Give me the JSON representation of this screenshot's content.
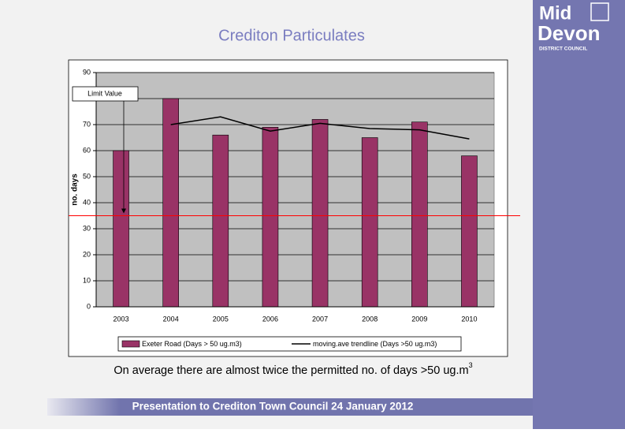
{
  "logo": {
    "line1": "Mid",
    "line2": "Devon",
    "line3": "DISTRICT COUNCIL"
  },
  "caption": {
    "text": "On average there are almost twice the permitted no. of days >50 ug.m",
    "superscript": "3"
  },
  "footer": "Presentation to Crediton Town Council 24 January 2012",
  "chart_data": {
    "type": "bar",
    "title": "Crediton Particulates",
    "y_label": "no. days",
    "categories": [
      "2003",
      "2004",
      "2005",
      "2006",
      "2007",
      "2008",
      "2009",
      "2010"
    ],
    "series": [
      {
        "name": "Exeter Road (Days > 50 ug.m3)",
        "color": "#993366",
        "type": "bar",
        "values": [
          60,
          80,
          66,
          69,
          72,
          65,
          71,
          58
        ]
      },
      {
        "name": "moving.ave trendline (Days >50 ug.m3)",
        "color": "#000000",
        "type": "line",
        "values": [
          null,
          70,
          73,
          67.5,
          70.5,
          68.5,
          68,
          64.5
        ]
      }
    ],
    "limit": {
      "label": "Limit Value",
      "value": 35,
      "color": "#ff0000"
    },
    "ylim": [
      0,
      90
    ],
    "yticks": [
      0,
      10,
      20,
      30,
      40,
      50,
      60,
      70,
      80,
      90
    ],
    "grid": true,
    "legend": "bottom"
  }
}
